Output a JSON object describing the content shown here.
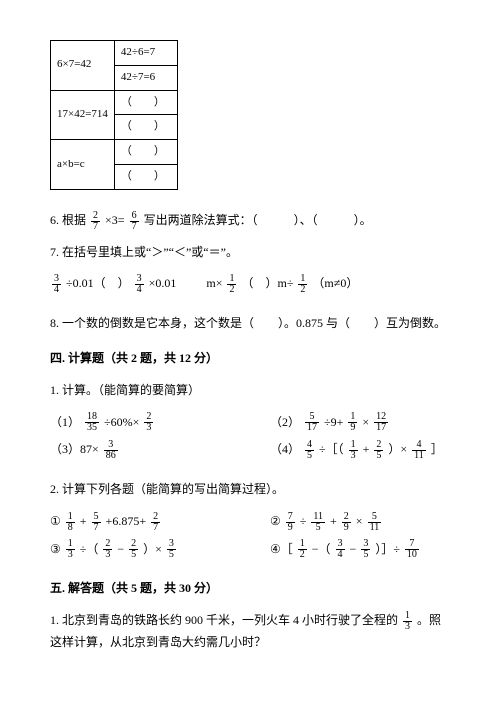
{
  "table": {
    "r1c1": "6×7=42",
    "r1c2": "42÷6=7",
    "r2c2": "42÷7=6",
    "r3c1": "17×42=714",
    "r3c2": "（　　）",
    "r4c2": "（　　）",
    "r5c1": "a×b=c",
    "r5c2": "（　　）",
    "r6c2": "（　　）"
  },
  "q6": {
    "prefix": "6. 根据",
    "f1n": "2",
    "f1d": "7",
    "mid1": "×3=",
    "f2n": "6",
    "f2d": "7",
    "mid2": "写出两道除法算式：（　　　）、（　　　）。"
  },
  "q7": {
    "title": "7. 在括号里填上或“＞”“＜”或“＝”。",
    "e1_fn": "3",
    "e1_fd": "4",
    "e1_txt": "÷0.01（　）",
    "e1b_fn": "3",
    "e1b_fd": "4",
    "e1b_txt": "×0.01",
    "e2_pre": "m×",
    "e2_fn": "1",
    "e2_fd": "2",
    "e2_mid": "（　）m÷",
    "e2b_fn": "1",
    "e2b_fd": "2",
    "e2_post": "（m≠0）"
  },
  "q8": "8. 一个数的倒数是它本身，这个数是（　　）。0.875 与（　　）互为倒数。",
  "s4": {
    "heading": "四. 计算题（共 2 题，共 12 分）",
    "p1": "1. 计算。（能简算的要简算）",
    "c1": {
      "a": "（1）",
      "f1n": "18",
      "f1d": "35",
      "mid": "÷60%×",
      "f2n": "2",
      "f2d": "3"
    },
    "c2": {
      "a": "（2）",
      "f1n": "5",
      "f1d": "17",
      "mid1": "÷9+",
      "f2n": "1",
      "f2d": "9",
      "mid2": "×",
      "f3n": "12",
      "f3d": "17"
    },
    "c3": {
      "a": "（3）87×",
      "f1n": "3",
      "f1d": "86"
    },
    "c4": {
      "a": "（4）",
      "f1n": "4",
      "f1d": "5",
      "mid1": "÷［（",
      "f2n": "1",
      "f2d": "3",
      "mid2": "+",
      "f3n": "2",
      "f3d": "5",
      "mid3": "）×",
      "f4n": "4",
      "f4d": "11",
      "mid4": "］"
    },
    "p2": "2. 计算下列各题（能简算的写出简算过程）。",
    "d1": {
      "a": "①",
      "f1n": "1",
      "f1d": "8",
      "m1": "+",
      "f2n": "5",
      "f2d": "7",
      "m2": "+6.875+",
      "f3n": "2",
      "f3d": "7"
    },
    "d2": {
      "a": "②",
      "f1n": "7",
      "f1d": "9",
      "m1": "÷",
      "f2n": "11",
      "f2d": "5",
      "m2": "+",
      "f3n": "2",
      "f3d": "9",
      "m3": "×",
      "f4n": "5",
      "f4d": "11"
    },
    "d3": {
      "a": "③",
      "f1n": "1",
      "f1d": "3",
      "m1": "÷（",
      "f2n": "2",
      "f2d": "3",
      "m2": "−",
      "f3n": "2",
      "f3d": "5",
      "m3": "）×",
      "f4n": "3",
      "f4d": "5"
    },
    "d4": {
      "a": "④［",
      "f1n": "1",
      "f1d": "2",
      "m1": "−（",
      "f2n": "3",
      "f2d": "4",
      "m2": "−",
      "f3n": "3",
      "f3d": "5",
      "m3": "）］÷",
      "f4n": "7",
      "f4d": "10"
    }
  },
  "s5": {
    "heading": "五. 解答题（共 5 题，共 30 分）",
    "q1a": "1. 北京到青岛的铁路长约 900 千米，一列火车 4 小时行驶了全程的",
    "q1fn": "1",
    "q1fd": "3",
    "q1b": "。照这样计算，从北京到青岛大约需几小时？"
  }
}
